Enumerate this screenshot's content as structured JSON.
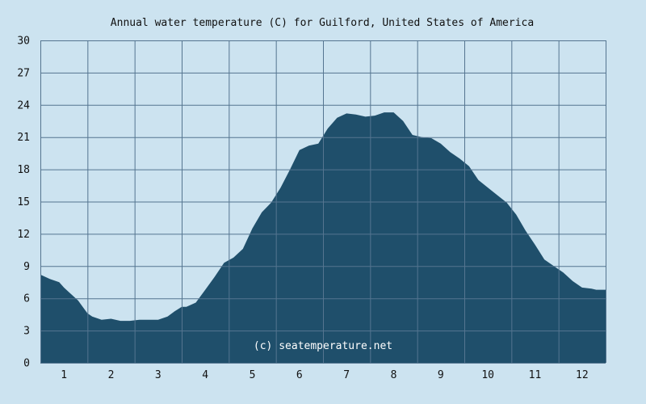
{
  "chart_data": {
    "type": "area",
    "title": "Annual water temperature (C) for Guilford, United States of America",
    "xlabel": "",
    "ylabel": "",
    "ylim": [
      0,
      30
    ],
    "y_ticks": [
      "0",
      "3",
      "6",
      "9",
      "12",
      "15",
      "18",
      "21",
      "24",
      "27",
      "30"
    ],
    "x_ticks": [
      "1",
      "2",
      "3",
      "4",
      "5",
      "6",
      "7",
      "8",
      "9",
      "10",
      "11",
      "12"
    ],
    "x_range": [
      0.5,
      12.5
    ],
    "grid": true,
    "series": [
      {
        "x": [
          0.5,
          0.7,
          0.9,
          1.0,
          1.1,
          1.3,
          1.5,
          1.6,
          1.8,
          2.0,
          2.2,
          2.4,
          2.6,
          2.8,
          3.0,
          3.2,
          3.35,
          3.5,
          3.6,
          3.8,
          4.0,
          4.2,
          4.4,
          4.6,
          4.8,
          5.0,
          5.2,
          5.4,
          5.6,
          5.8,
          6.0,
          6.2,
          6.4,
          6.6,
          6.8,
          7.0,
          7.2,
          7.4,
          7.6,
          7.8,
          8.0,
          8.2,
          8.4,
          8.6,
          8.8,
          9.0,
          9.2,
          9.4,
          9.6,
          9.8,
          10.0,
          10.2,
          10.4,
          10.6,
          10.8,
          11.0,
          11.2,
          11.4,
          11.6,
          11.8,
          12.0,
          12.2,
          12.3,
          12.4,
          12.5
        ],
        "values": [
          8.2,
          7.8,
          7.5,
          7.0,
          6.6,
          5.8,
          4.6,
          4.3,
          4.0,
          4.1,
          3.9,
          3.9,
          4.0,
          4.0,
          4.0,
          4.3,
          4.8,
          5.2,
          5.2,
          5.6,
          6.8,
          8.0,
          9.3,
          9.8,
          10.6,
          12.5,
          14.0,
          14.9,
          16.3,
          18.0,
          19.8,
          20.2,
          20.4,
          21.8,
          22.8,
          23.2,
          23.1,
          22.9,
          23.0,
          23.3,
          23.3,
          22.5,
          21.2,
          21.0,
          20.9,
          20.4,
          19.6,
          19.0,
          18.3,
          17.0,
          16.3,
          15.6,
          14.9,
          13.8,
          12.3,
          11.0,
          9.6,
          9.0,
          8.4,
          7.6,
          7.0,
          6.9,
          6.8,
          6.8,
          6.8
        ]
      }
    ],
    "fill_color": "#1f4f6b",
    "grid_color": "#557590",
    "plot_background": "#cce3f0"
  },
  "watermark": "(c) seatemperature.net"
}
